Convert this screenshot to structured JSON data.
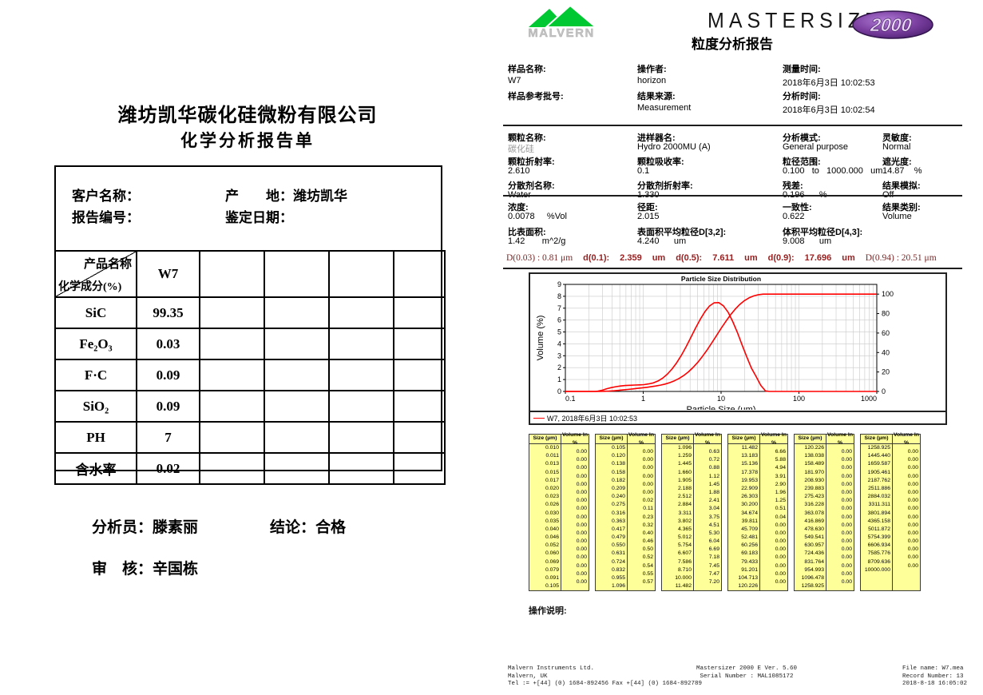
{
  "left_report": {
    "company_title": "潍坊凯华碳化硅微粉有限公司",
    "report_title": "化学分析报告单",
    "info": {
      "customer_label": "客户名称：",
      "origin_label": "产　　地：潍坊凯华",
      "report_no_label": "报告编号：",
      "date_label": "鉴定日期："
    },
    "table": {
      "header_product": "产品名称",
      "header_composition": "化学成分(%)",
      "product_value": "W7",
      "empty_columns": 4,
      "rows": [
        {
          "component": "SiC",
          "value": "99.35"
        },
        {
          "component": "Fe₂O₃",
          "value": "0.03"
        },
        {
          "component": "F·C",
          "value": "0.09"
        },
        {
          "component": "SiO₂",
          "value": "0.09"
        },
        {
          "component": "PH",
          "value": "7"
        },
        {
          "component": "含水率",
          "value": "0.02"
        }
      ]
    },
    "signoff": {
      "analyst": "分析员：滕素丽",
      "conclusion": "结论：合格",
      "reviewer": "审　核：辛国栋"
    }
  },
  "right_report": {
    "malvern_logo_text": "MALVERN",
    "brand": "MASTERSIZER",
    "brand_model": "2000",
    "report_title": "粒度分析报告",
    "colors": {
      "curve_red": "#ff0000",
      "d_line_red": "#992020",
      "table_yellow": "#ffff99",
      "logo_green": "#00c832",
      "logo_purple": "#6a2c91"
    },
    "sample_info": [
      {
        "label": "样品名称:",
        "value": "W7",
        "label2": "样品参考批号:",
        "value2": ""
      },
      {
        "label": "操作者:",
        "value": "horizon",
        "label2": "结果来源:",
        "value2": "Measurement"
      },
      {
        "label": "测量时间:",
        "value": "2018年6月3日 10:02:53",
        "label2": "分析时间:",
        "value2": "2018年6月3日 10:02:54"
      }
    ],
    "params": [
      [
        {
          "label": "颗粒名称:",
          "value": "碳化硅",
          "muted": true
        },
        {
          "label": "进样器名:",
          "value": "Hydro 2000MU (A)"
        },
        {
          "label": "分析模式:",
          "value": "General purpose"
        },
        {
          "label": "灵敏度:",
          "value": "Normal"
        }
      ],
      [
        {
          "label": "颗粒折射率:",
          "value": "2.610"
        },
        {
          "label": "颗粒吸收率:",
          "value": "0.1"
        },
        {
          "label": "粒径范围:",
          "value": "0.100   to   1000.000   um"
        },
        {
          "label": "遮光度:",
          "value": "14.87    %"
        }
      ],
      [
        {
          "label": "分散剂名称:",
          "value": "Water"
        },
        {
          "label": "分散剂折射率:",
          "value": "1.330"
        },
        {
          "label": "残差:",
          "value": "0.196      %"
        },
        {
          "label": "结果模拟:",
          "value": "Off"
        }
      ]
    ],
    "results": [
      [
        {
          "label": "浓度:",
          "value": "0.0078     %Vol"
        },
        {
          "label": "径距:",
          "value": "2.015"
        },
        {
          "label": "一致性:",
          "value": "0.622"
        },
        {
          "label": "结果类别:",
          "value": "Volume"
        }
      ],
      [
        {
          "label": "比表面积:",
          "value": "1.42       m^2/g"
        },
        {
          "label": "表面积平均粒径D[3,2]:",
          "value": "4.240      um"
        },
        {
          "label": "体积平均粒径D[4,3]:",
          "value": "9.008      um"
        }
      ]
    ],
    "d_line_parts": [
      {
        "text": "D(0.03) : 0.81 μm",
        "style": "serif"
      },
      {
        "text": "d(0.1):",
        "style": "bold"
      },
      {
        "text": "2.359",
        "style": "bold"
      },
      {
        "text": "um",
        "style": "bold"
      },
      {
        "text": "d(0.5):",
        "style": "bold"
      },
      {
        "text": "7.611",
        "style": "bold"
      },
      {
        "text": "um",
        "style": "bold"
      },
      {
        "text": "d(0.9):",
        "style": "bold"
      },
      {
        "text": "17.696",
        "style": "bold"
      },
      {
        "text": "um",
        "style": "bold"
      },
      {
        "text": "D(0.94) : 20.51 μm",
        "style": "serif"
      }
    ],
    "size_table": {
      "size_header": "Size (µm)",
      "volume_header": "Volume In %",
      "groups": [
        {
          "sizes": [
            "0.010",
            "0.011",
            "0.013",
            "0.015",
            "0.017",
            "0.020",
            "0.023",
            "0.026",
            "0.030",
            "0.035",
            "0.040",
            "0.046",
            "0.052",
            "0.060",
            "0.069",
            "0.079",
            "0.091",
            "0.105"
          ],
          "volumes": [
            "0.00",
            "0.00",
            "0.00",
            "0.00",
            "0.00",
            "0.00",
            "0.00",
            "0.00",
            "0.00",
            "0.00",
            "0.00",
            "0.00",
            "0.00",
            "0.00",
            "0.00",
            "0.00",
            "0.00"
          ]
        },
        {
          "sizes": [
            "0.105",
            "0.120",
            "0.138",
            "0.158",
            "0.182",
            "0.209",
            "0.240",
            "0.275",
            "0.316",
            "0.363",
            "0.417",
            "0.479",
            "0.550",
            "0.631",
            "0.724",
            "0.832",
            "0.955",
            "1.096"
          ],
          "volumes": [
            "0.00",
            "0.00",
            "0.00",
            "0.00",
            "0.00",
            "0.00",
            "0.02",
            "0.11",
            "0.23",
            "0.32",
            "0.40",
            "0.46",
            "0.50",
            "0.52",
            "0.54",
            "0.55",
            "0.57"
          ]
        },
        {
          "sizes": [
            "1.096",
            "1.259",
            "1.445",
            "1.660",
            "1.905",
            "2.188",
            "2.512",
            "2.884",
            "3.311",
            "3.802",
            "4.365",
            "5.012",
            "5.754",
            "6.607",
            "7.586",
            "8.710",
            "10.000",
            "11.482"
          ],
          "volumes": [
            "0.63",
            "0.72",
            "0.88",
            "1.12",
            "1.45",
            "1.88",
            "2.41",
            "3.04",
            "3.75",
            "4.51",
            "5.30",
            "6.04",
            "6.69",
            "7.18",
            "7.45",
            "7.47",
            "7.20"
          ]
        },
        {
          "sizes": [
            "11.482",
            "13.183",
            "15.136",
            "17.378",
            "19.953",
            "22.909",
            "26.303",
            "30.200",
            "34.674",
            "39.811",
            "45.709",
            "52.481",
            "60.256",
            "69.183",
            "79.433",
            "91.201",
            "104.713",
            "120.226"
          ],
          "volumes": [
            "6.66",
            "5.88",
            "4.94",
            "3.91",
            "2.90",
            "1.96",
            "1.25",
            "0.51",
            "0.04",
            "0.00",
            "0.00",
            "0.00",
            "0.00",
            "0.00",
            "0.00",
            "0.00",
            "0.00"
          ]
        },
        {
          "sizes": [
            "120.226",
            "138.038",
            "158.489",
            "181.970",
            "208.930",
            "239.883",
            "275.423",
            "316.228",
            "363.078",
            "416.869",
            "478.630",
            "549.541",
            "630.957",
            "724.436",
            "831.764",
            "954.993",
            "1096.478",
            "1258.925"
          ],
          "volumes": [
            "0.00",
            "0.00",
            "0.00",
            "0.00",
            "0.00",
            "0.00",
            "0.00",
            "0.00",
            "0.00",
            "0.00",
            "0.00",
            "0.00",
            "0.00",
            "0.00",
            "0.00",
            "0.00",
            "0.00"
          ]
        },
        {
          "sizes": [
            "1258.925",
            "1445.440",
            "1659.587",
            "1905.461",
            "2187.762",
            "2511.886",
            "2884.032",
            "3311.311",
            "3801.894",
            "4365.158",
            "5011.872",
            "5754.399",
            "6606.934",
            "7585.776",
            "8709.636",
            "10000.000"
          ],
          "volumes": [
            "0.00",
            "0.00",
            "0.00",
            "0.00",
            "0.00",
            "0.00",
            "0.00",
            "0.00",
            "0.00",
            "0.00",
            "0.00",
            "0.00",
            "0.00",
            "0.00",
            "0.00"
          ]
        }
      ]
    },
    "operation_label": "操作说明:",
    "footer": {
      "left": [
        "Malvern Instruments Ltd.",
        "Malvern, UK",
        "Tel := +[44] (0) 1684-892456 Fax +[44] (0) 1684-892789"
      ],
      "center": [
        "Mastersizer 2000 E Ver. 5.60",
        "Serial Number : MAL1085172"
      ],
      "right": [
        "File name: W7.mea",
        "Record Number: 13",
        "2018-8-18 16:05:02"
      ]
    }
  },
  "chart_data": {
    "type": "line",
    "title": "Particle Size Distribution",
    "xlabel": "Particle Size (µm)",
    "ylabel": "Volume (%)",
    "x_scale": "log",
    "xlim": [
      0.1,
      1000
    ],
    "xticks": [
      0.1,
      1,
      10,
      100,
      1000
    ],
    "ylim_left": [
      0,
      9
    ],
    "yticks_left": [
      0,
      1,
      2,
      3,
      4,
      5,
      6,
      7,
      8,
      9
    ],
    "ylim_right": [
      0,
      110
    ],
    "yticks_right": [
      0,
      20,
      40,
      60,
      80,
      100
    ],
    "grid": true,
    "line_color": "#ff0000",
    "legend": [
      "W7, 2018年6月3日 10:02:53"
    ],
    "series": [
      {
        "name": "W7 volume frequency",
        "axis": "left",
        "x": [
          0.1,
          0.24,
          0.26,
          0.3,
          0.34,
          0.39,
          0.45,
          0.51,
          0.59,
          0.68,
          0.78,
          0.89,
          1.02,
          1.17,
          1.35,
          1.55,
          1.78,
          2.04,
          2.34,
          2.69,
          3.09,
          3.55,
          4.07,
          4.68,
          5.37,
          6.17,
          7.08,
          8.13,
          9.33,
          10.72,
          12.3,
          14.13,
          16.22,
          18.62,
          21.38,
          24.55,
          28.18,
          32.36,
          37.15,
          41.7,
          1000
        ],
        "y": [
          0,
          0,
          0.02,
          0.11,
          0.23,
          0.32,
          0.4,
          0.46,
          0.5,
          0.52,
          0.54,
          0.55,
          0.57,
          0.63,
          0.72,
          0.88,
          1.12,
          1.45,
          1.88,
          2.41,
          3.04,
          3.75,
          4.51,
          5.3,
          6.04,
          6.69,
          7.18,
          7.45,
          7.47,
          7.2,
          6.66,
          5.88,
          4.94,
          3.91,
          2.9,
          1.96,
          1.25,
          0.51,
          0.04,
          0,
          0
        ]
      },
      {
        "name": "W7 cumulative undersize",
        "axis": "right",
        "x": [
          0.1,
          0.24,
          0.275,
          0.316,
          0.363,
          0.417,
          0.479,
          0.55,
          0.631,
          0.724,
          0.832,
          0.955,
          1.096,
          1.259,
          1.445,
          1.66,
          1.905,
          2.188,
          2.512,
          2.884,
          3.311,
          3.802,
          4.365,
          5.012,
          5.754,
          6.607,
          7.586,
          8.71,
          10.0,
          11.482,
          13.183,
          15.136,
          17.378,
          19.953,
          22.909,
          26.303,
          30.2,
          34.674,
          39.811,
          45.709,
          1000
        ],
        "y": [
          0,
          0,
          0.02,
          0.13,
          0.36,
          0.68,
          1.08,
          1.54,
          2.04,
          2.56,
          3.1,
          3.65,
          4.22,
          4.85,
          5.57,
          6.45,
          7.57,
          9.02,
          10.9,
          13.31,
          16.35,
          20.1,
          24.61,
          29.91,
          35.95,
          42.64,
          49.82,
          57.27,
          64.74,
          71.94,
          78.6,
          84.48,
          89.42,
          93.33,
          96.23,
          98.19,
          99.44,
          99.95,
          99.99,
          100,
          100
        ]
      }
    ]
  }
}
